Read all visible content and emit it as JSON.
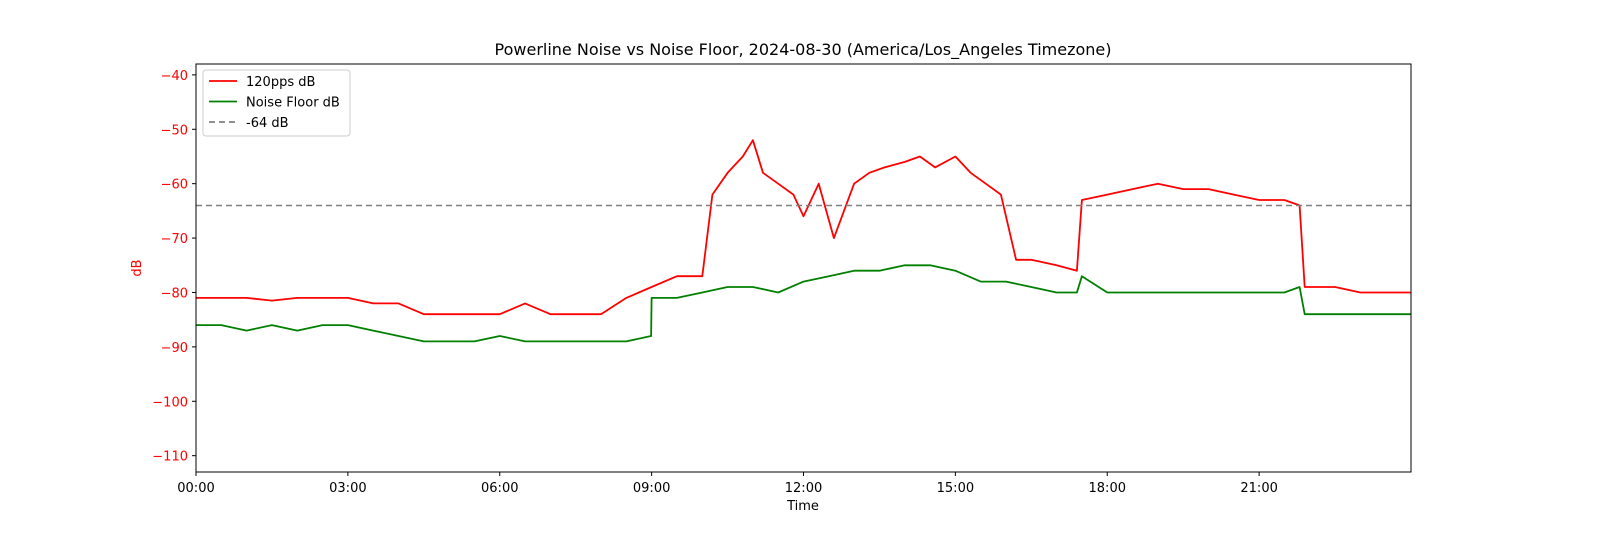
{
  "chart_data": {
    "type": "line",
    "title": "Powerline Noise vs Noise Floor, 2024-08-30 (America/Los_Angeles Timezone)",
    "xlabel": "Time",
    "ylabel": "dB",
    "xlim": [
      0,
      24
    ],
    "ylim": [
      -113,
      -38
    ],
    "x_ticks": [
      {
        "value": 0,
        "label": "00:00"
      },
      {
        "value": 3,
        "label": "03:00"
      },
      {
        "value": 6,
        "label": "06:00"
      },
      {
        "value": 9,
        "label": "09:00"
      },
      {
        "value": 12,
        "label": "12:00"
      },
      {
        "value": 15,
        "label": "15:00"
      },
      {
        "value": 18,
        "label": "18:00"
      },
      {
        "value": 21,
        "label": "21:00"
      }
    ],
    "y_ticks": [
      {
        "value": -40,
        "label": "−40"
      },
      {
        "value": -50,
        "label": "−50"
      },
      {
        "value": -60,
        "label": "−60"
      },
      {
        "value": -70,
        "label": "−70"
      },
      {
        "value": -80,
        "label": "−80"
      },
      {
        "value": -90,
        "label": "−90"
      },
      {
        "value": -100,
        "label": "−100"
      },
      {
        "value": -110,
        "label": "−110"
      }
    ],
    "legend_position": "top-left",
    "grid": false,
    "colors": {
      "series_120pps": "#ff0000",
      "series_noise_floor": "#008000",
      "threshold": "#808080",
      "y_axis_labels": "#ff0000",
      "axes": "#000000"
    },
    "series": [
      {
        "name": "120pps dB",
        "color": "#ff0000",
        "x": [
          0,
          0.5,
          1,
          1.5,
          2,
          2.5,
          3,
          3.5,
          4,
          4.5,
          5,
          5.5,
          6,
          6.5,
          7,
          7.5,
          8,
          8.5,
          9,
          9.5,
          10,
          10.2,
          10.5,
          10.8,
          11,
          11.2,
          11.5,
          11.8,
          12,
          12.3,
          12.6,
          13,
          13.3,
          13.6,
          14,
          14.3,
          14.6,
          15,
          15.3,
          15.6,
          15.9,
          16.2,
          16.5,
          17,
          17.4,
          17.5,
          18,
          18.5,
          19,
          19.5,
          20,
          20.5,
          21,
          21.5,
          21.8,
          21.9,
          22.5,
          23,
          23.5,
          24
        ],
        "y": [
          -81,
          -81,
          -81,
          -81.5,
          -81,
          -81,
          -81,
          -82,
          -82,
          -84,
          -84,
          -84,
          -84,
          -82,
          -84,
          -84,
          -84,
          -81,
          -79,
          -77,
          -77,
          -62,
          -58,
          -55,
          -52,
          -58,
          -60,
          -62,
          -66,
          -60,
          -70,
          -60,
          -58,
          -57,
          -56,
          -55,
          -57,
          -55,
          -58,
          -60,
          -62,
          -74,
          -74,
          -75,
          -76,
          -63,
          -62,
          -61,
          -60,
          -61,
          -61,
          -62,
          -63,
          -63,
          -64,
          -79,
          -79,
          -80,
          -80,
          -80
        ]
      },
      {
        "name": "Noise Floor dB",
        "color": "#008000",
        "x": [
          0,
          0.5,
          1,
          1.5,
          2,
          2.5,
          3,
          3.5,
          4,
          4.5,
          5,
          5.5,
          6,
          6.5,
          7,
          7.5,
          8,
          8.5,
          8.99,
          9,
          9.5,
          10,
          10.5,
          11,
          11.5,
          12,
          12.5,
          13,
          13.5,
          14,
          14.5,
          15,
          15.5,
          16,
          16.5,
          17,
          17.4,
          17.5,
          18,
          18.5,
          19,
          19.5,
          20,
          20.5,
          21,
          21.5,
          21.8,
          21.9,
          22.5,
          23,
          23.5,
          24
        ],
        "y": [
          -86,
          -86,
          -87,
          -86,
          -87,
          -86,
          -86,
          -87,
          -88,
          -89,
          -89,
          -89,
          -88,
          -89,
          -89,
          -89,
          -89,
          -89,
          -88,
          -81,
          -81,
          -80,
          -79,
          -79,
          -80,
          -78,
          -77,
          -76,
          -76,
          -75,
          -75,
          -76,
          -78,
          -78,
          -79,
          -80,
          -80,
          -77,
          -80,
          -80,
          -80,
          -80,
          -80,
          -80,
          -80,
          -80,
          -79,
          -84,
          -84,
          -84,
          -84,
          -84
        ]
      }
    ],
    "threshold": {
      "name": "-64 dB",
      "value": -64,
      "style": "dashed"
    }
  }
}
